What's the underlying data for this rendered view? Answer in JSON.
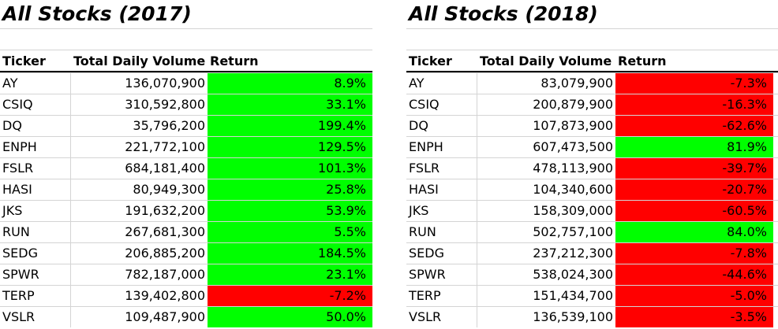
{
  "colors": {
    "positive": "#00ff00",
    "negative": "#ff0000",
    "grid": "#d4d4d4"
  },
  "left": {
    "title": "All Stocks (2017)",
    "headers": {
      "ticker": "Ticker",
      "volume": "Total Daily Volume",
      "return": "Return"
    },
    "rows": [
      {
        "ticker": "AY",
        "volume": "136,070,900",
        "return": "8.9%",
        "sign": "positive"
      },
      {
        "ticker": "CSIQ",
        "volume": "310,592,800",
        "return": "33.1%",
        "sign": "positive"
      },
      {
        "ticker": "DQ",
        "volume": "35,796,200",
        "return": "199.4%",
        "sign": "positive"
      },
      {
        "ticker": "ENPH",
        "volume": "221,772,100",
        "return": "129.5%",
        "sign": "positive"
      },
      {
        "ticker": "FSLR",
        "volume": "684,181,400",
        "return": "101.3%",
        "sign": "positive"
      },
      {
        "ticker": "HASI",
        "volume": "80,949,300",
        "return": "25.8%",
        "sign": "positive"
      },
      {
        "ticker": "JKS",
        "volume": "191,632,200",
        "return": "53.9%",
        "sign": "positive"
      },
      {
        "ticker": "RUN",
        "volume": "267,681,300",
        "return": "5.5%",
        "sign": "positive"
      },
      {
        "ticker": "SEDG",
        "volume": "206,885,200",
        "return": "184.5%",
        "sign": "positive"
      },
      {
        "ticker": "SPWR",
        "volume": "782,187,000",
        "return": "23.1%",
        "sign": "positive"
      },
      {
        "ticker": "TERP",
        "volume": "139,402,800",
        "return": "-7.2%",
        "sign": "negative"
      },
      {
        "ticker": "VSLR",
        "volume": "109,487,900",
        "return": "50.0%",
        "sign": "positive"
      }
    ]
  },
  "right": {
    "title": "All Stocks (2018)",
    "headers": {
      "ticker": "Ticker",
      "volume": "Total Daily Volume",
      "return": "Return"
    },
    "rows": [
      {
        "ticker": "AY",
        "volume": "83,079,900",
        "return": "-7.3%",
        "sign": "negative"
      },
      {
        "ticker": "CSIQ",
        "volume": "200,879,900",
        "return": "-16.3%",
        "sign": "negative"
      },
      {
        "ticker": "DQ",
        "volume": "107,873,900",
        "return": "-62.6%",
        "sign": "negative"
      },
      {
        "ticker": "ENPH",
        "volume": "607,473,500",
        "return": "81.9%",
        "sign": "positive"
      },
      {
        "ticker": "FSLR",
        "volume": "478,113,900",
        "return": "-39.7%",
        "sign": "negative"
      },
      {
        "ticker": "HASI",
        "volume": "104,340,600",
        "return": "-20.7%",
        "sign": "negative"
      },
      {
        "ticker": "JKS",
        "volume": "158,309,000",
        "return": "-60.5%",
        "sign": "negative"
      },
      {
        "ticker": "RUN",
        "volume": "502,757,100",
        "return": "84.0%",
        "sign": "positive"
      },
      {
        "ticker": "SEDG",
        "volume": "237,212,300",
        "return": "-7.8%",
        "sign": "negative"
      },
      {
        "ticker": "SPWR",
        "volume": "538,024,300",
        "return": "-44.6%",
        "sign": "negative"
      },
      {
        "ticker": "TERP",
        "volume": "151,434,700",
        "return": "-5.0%",
        "sign": "negative"
      },
      {
        "ticker": "VSLR",
        "volume": "136,539,100",
        "return": "-3.5%",
        "sign": "negative"
      }
    ]
  }
}
